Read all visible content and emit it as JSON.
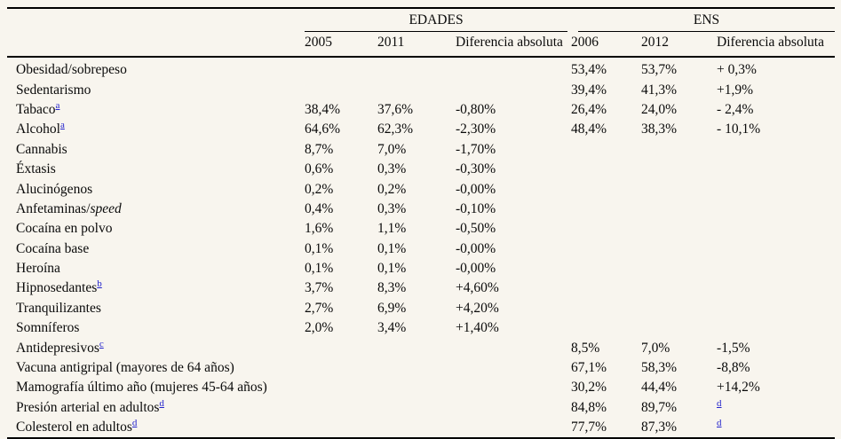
{
  "page": {
    "background_color": "#f8f5ee",
    "rule_color": "#000000",
    "footnote_link_color": "#2222cc"
  },
  "table": {
    "groups": [
      {
        "label": "EDADES",
        "cols": [
          "2005",
          "2011",
          "Diferencia absoluta"
        ]
      },
      {
        "label": "ENS",
        "cols": [
          "2006",
          "2012",
          "Diferencia absoluta"
        ]
      }
    ],
    "rows": [
      {
        "label": "Obesidad/sobrepeso",
        "italic": "",
        "sup": "",
        "v2005": "",
        "v2011": "",
        "dif_edades": "",
        "v2006": "53,4%",
        "v2012": "53,7%",
        "dif_ens": "+ 0,3%",
        "dif_ens_sup": ""
      },
      {
        "label": "Sedentarismo",
        "italic": "",
        "sup": "",
        "v2005": "",
        "v2011": "",
        "dif_edades": "",
        "v2006": "39,4%",
        "v2012": "41,3%",
        "dif_ens": "+1,9%",
        "dif_ens_sup": ""
      },
      {
        "label": "Tabaco",
        "italic": "",
        "sup": "a",
        "v2005": "38,4%",
        "v2011": "37,6%",
        "dif_edades": "-0,80%",
        "v2006": "26,4%",
        "v2012": "24,0%",
        "dif_ens": "- 2,4%",
        "dif_ens_sup": ""
      },
      {
        "label": "Alcohol",
        "italic": "",
        "sup": "a",
        "v2005": "64,6%",
        "v2011": "62,3%",
        "dif_edades": "-2,30%",
        "v2006": "48,4%",
        "v2012": "38,3%",
        "dif_ens": "- 10,1%",
        "dif_ens_sup": ""
      },
      {
        "label": "Cannabis",
        "italic": "",
        "sup": "",
        "v2005": "8,7%",
        "v2011": "7,0%",
        "dif_edades": "-1,70%",
        "v2006": "",
        "v2012": "",
        "dif_ens": "",
        "dif_ens_sup": ""
      },
      {
        "label": "Éxtasis",
        "italic": "",
        "sup": "",
        "v2005": "0,6%",
        "v2011": "0,3%",
        "dif_edades": "-0,30%",
        "v2006": "",
        "v2012": "",
        "dif_ens": "",
        "dif_ens_sup": ""
      },
      {
        "label": "Alucinógenos",
        "italic": "",
        "sup": "",
        "v2005": "0,2%",
        "v2011": "0,2%",
        "dif_edades": "-0,00%",
        "v2006": "",
        "v2012": "",
        "dif_ens": "",
        "dif_ens_sup": ""
      },
      {
        "label": "Anfetaminas/",
        "italic": "speed",
        "sup": "",
        "v2005": "0,4%",
        "v2011": "0,3%",
        "dif_edades": "-0,10%",
        "v2006": "",
        "v2012": "",
        "dif_ens": "",
        "dif_ens_sup": ""
      },
      {
        "label": "Cocaína en polvo",
        "italic": "",
        "sup": "",
        "v2005": "1,6%",
        "v2011": "1,1%",
        "dif_edades": "-0,50%",
        "v2006": "",
        "v2012": "",
        "dif_ens": "",
        "dif_ens_sup": ""
      },
      {
        "label": "Cocaína base",
        "italic": "",
        "sup": "",
        "v2005": "0,1%",
        "v2011": "0,1%",
        "dif_edades": "-0,00%",
        "v2006": "",
        "v2012": "",
        "dif_ens": "",
        "dif_ens_sup": ""
      },
      {
        "label": "Heroína",
        "italic": "",
        "sup": "",
        "v2005": "0,1%",
        "v2011": "0,1%",
        "dif_edades": "-0,00%",
        "v2006": "",
        "v2012": "",
        "dif_ens": "",
        "dif_ens_sup": ""
      },
      {
        "label": "Hipnosedantes",
        "italic": "",
        "sup": "b",
        "v2005": "3,7%",
        "v2011": "8,3%",
        "dif_edades": "+4,60%",
        "v2006": "",
        "v2012": "",
        "dif_ens": "",
        "dif_ens_sup": ""
      },
      {
        "label": "Tranquilizantes",
        "italic": "",
        "sup": "",
        "v2005": "2,7%",
        "v2011": "6,9%",
        "dif_edades": "+4,20%",
        "v2006": "",
        "v2012": "",
        "dif_ens": "",
        "dif_ens_sup": ""
      },
      {
        "label": "Somníferos",
        "italic": "",
        "sup": "",
        "v2005": "2,0%",
        "v2011": "3,4%",
        "dif_edades": "+1,40%",
        "v2006": "",
        "v2012": "",
        "dif_ens": "",
        "dif_ens_sup": ""
      },
      {
        "label": "Antidepresivos",
        "italic": "",
        "sup": "c",
        "v2005": "",
        "v2011": "",
        "dif_edades": "",
        "v2006": "8,5%",
        "v2012": "7,0%",
        "dif_ens": "-1,5%",
        "dif_ens_sup": ""
      },
      {
        "label": "Vacuna antigripal (mayores de 64 años)",
        "italic": "",
        "sup": "",
        "v2005": "",
        "v2011": "",
        "dif_edades": "",
        "v2006": "67,1%",
        "v2012": "58,3%",
        "dif_ens": "-8,8%",
        "dif_ens_sup": ""
      },
      {
        "label": "Mamografía último año (mujeres 45-64 años)",
        "italic": "",
        "sup": "",
        "v2005": "",
        "v2011": "",
        "dif_edades": "",
        "v2006": "30,2%",
        "v2012": "44,4%",
        "dif_ens": "+14,2%",
        "dif_ens_sup": ""
      },
      {
        "label": "Presión arterial en adultos",
        "italic": "",
        "sup": "d",
        "v2005": "",
        "v2011": "",
        "dif_edades": "",
        "v2006": "84,8%",
        "v2012": "89,7%",
        "dif_ens": "",
        "dif_ens_sup": "d"
      },
      {
        "label": "Colesterol en adultos",
        "italic": "",
        "sup": "d",
        "v2005": "",
        "v2011": "",
        "dif_edades": "",
        "v2006": "77,7%",
        "v2012": "87,3%",
        "dif_ens": "",
        "dif_ens_sup": "d"
      }
    ]
  }
}
